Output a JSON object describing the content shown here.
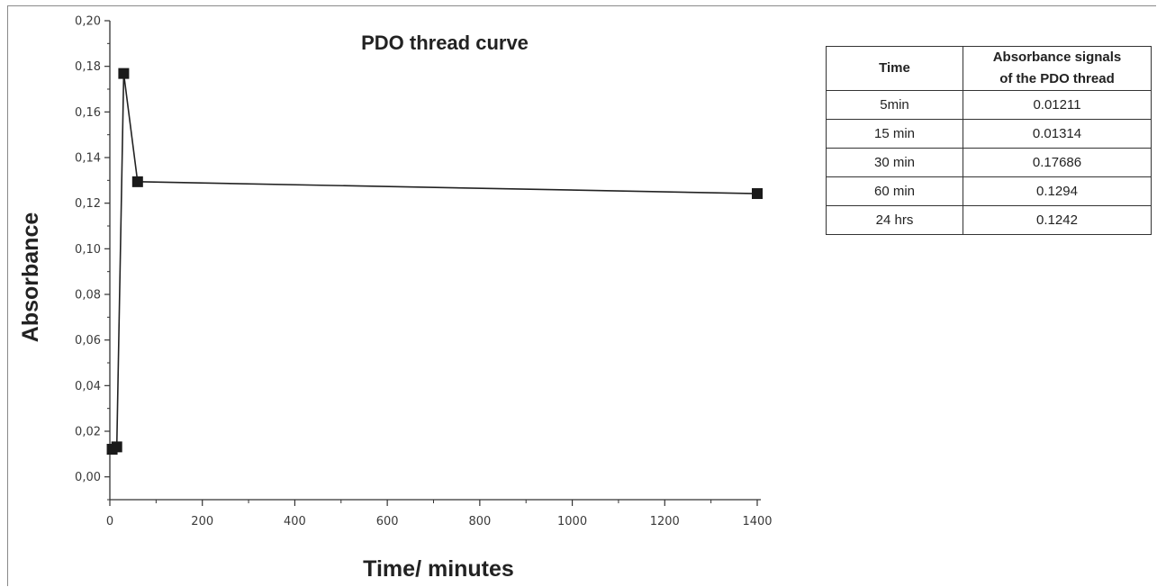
{
  "chart_data": {
    "type": "line",
    "title": "PDO thread curve",
    "xlabel": "Time/ minutes",
    "ylabel": "Absorbance",
    "xlim": [
      0,
      1400
    ],
    "ylim": [
      -0.01,
      0.2
    ],
    "x_ticks": [
      "0",
      "200",
      "400",
      "600",
      "800",
      "1000",
      "1200",
      "1400"
    ],
    "y_ticks": [
      "0,00",
      "0,02",
      "0,04",
      "0,06",
      "0,08",
      "0,10",
      "0,12",
      "0,14",
      "0,16",
      "0,18",
      "0,20"
    ],
    "grid": false,
    "series": [
      {
        "x": [
          5,
          15,
          30,
          60,
          1440
        ],
        "y": [
          0.01211,
          0.01314,
          0.17686,
          0.1294,
          0.1242
        ]
      }
    ]
  },
  "table": {
    "headers": [
      "Time",
      "Absorbance signals of the PDO thread"
    ],
    "header_lines": [
      [
        "Time"
      ],
      [
        "Absorbance signals",
        "of the PDO thread"
      ]
    ],
    "rows": [
      [
        "5min",
        "0.01211"
      ],
      [
        "15 min",
        "0.01314"
      ],
      [
        "30 min",
        "0.17686"
      ],
      [
        "60 min",
        "0.1294"
      ],
      [
        "24 hrs",
        "0.1242"
      ]
    ]
  }
}
